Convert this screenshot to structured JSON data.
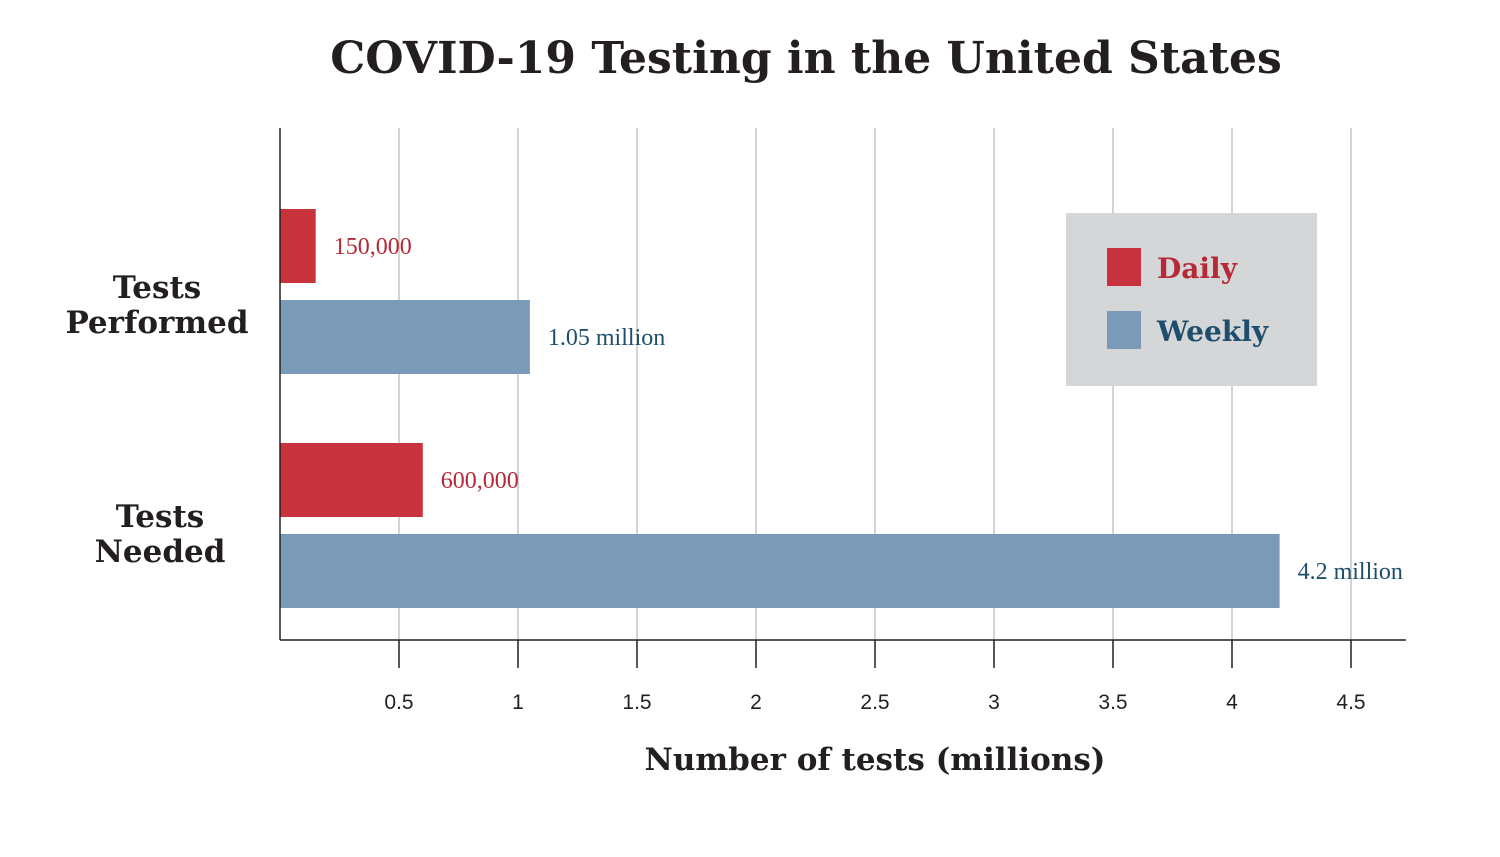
{
  "chart_data": {
    "type": "bar",
    "orientation": "horizontal",
    "title": "COVID-19 Testing in the United States",
    "xlabel": "Number of tests (millions)",
    "ylabel": "",
    "xlim": [
      0,
      4.65
    ],
    "x_ticks": [
      0.5,
      1,
      1.5,
      2,
      2.5,
      3,
      3.5,
      4,
      4.5
    ],
    "x_tick_labels": [
      "0.5",
      "1",
      "1.5",
      "2",
      "2.5",
      "3",
      "3.5",
      "4",
      "4.5"
    ],
    "grid": "vertical",
    "legend_position": "right",
    "categories": [
      {
        "lines": [
          "Tests",
          "Performed"
        ]
      },
      {
        "lines": [
          "Tests",
          "Needed"
        ]
      }
    ],
    "series": [
      {
        "name": "Daily",
        "color": "#c8323c",
        "label_color": "#b52a35",
        "values": [
          0.15,
          0.6
        ],
        "data_labels": [
          "150,000",
          "600,000"
        ]
      },
      {
        "name": "Weekly",
        "color": "#7a9ab8",
        "label_color": "#1e4e6b",
        "values": [
          1.05,
          4.2
        ],
        "data_labels": [
          "1.05 million",
          "4.2 million"
        ]
      }
    ]
  }
}
